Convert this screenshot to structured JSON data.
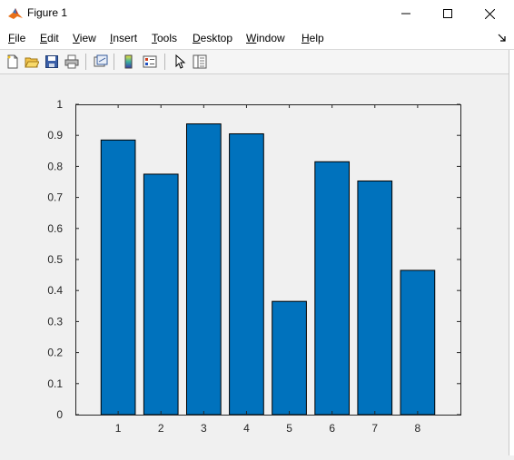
{
  "window": {
    "title": "Figure 1",
    "icon": "matlab-logo-icon"
  },
  "menu": {
    "items": [
      {
        "label": "File",
        "hotkey_index": 0
      },
      {
        "label": "Edit",
        "hotkey_index": 0
      },
      {
        "label": "View",
        "hotkey_index": 0
      },
      {
        "label": "Insert",
        "hotkey_index": 0
      },
      {
        "label": "Tools",
        "hotkey_index": 0
      },
      {
        "label": "Desktop",
        "hotkey_index": 0
      },
      {
        "label": "Window",
        "hotkey_index": 0
      },
      {
        "label": "Help",
        "hotkey_index": 0
      }
    ]
  },
  "toolbar": {
    "buttons": [
      "new-figure-icon",
      "open-file-icon",
      "save-figure-icon",
      "print-figure-icon",
      "link-plot-icon",
      "insert-colorbar-icon",
      "insert-legend-icon",
      "edit-plot-icon",
      "open-property-inspector-icon"
    ]
  },
  "chart_data": {
    "type": "bar",
    "categories": [
      "1",
      "2",
      "3",
      "4",
      "5",
      "6",
      "7",
      "8"
    ],
    "values": [
      0.885,
      0.775,
      0.937,
      0.905,
      0.365,
      0.815,
      0.753,
      0.465
    ],
    "ylim": [
      0,
      1
    ],
    "yticks": [
      "0",
      "0.1",
      "0.2",
      "0.3",
      "0.4",
      "0.5",
      "0.6",
      "0.7",
      "0.8",
      "0.9",
      "1"
    ],
    "bar_color": "#0072bd",
    "grid": false,
    "title": "",
    "xlabel": "",
    "ylabel": ""
  }
}
